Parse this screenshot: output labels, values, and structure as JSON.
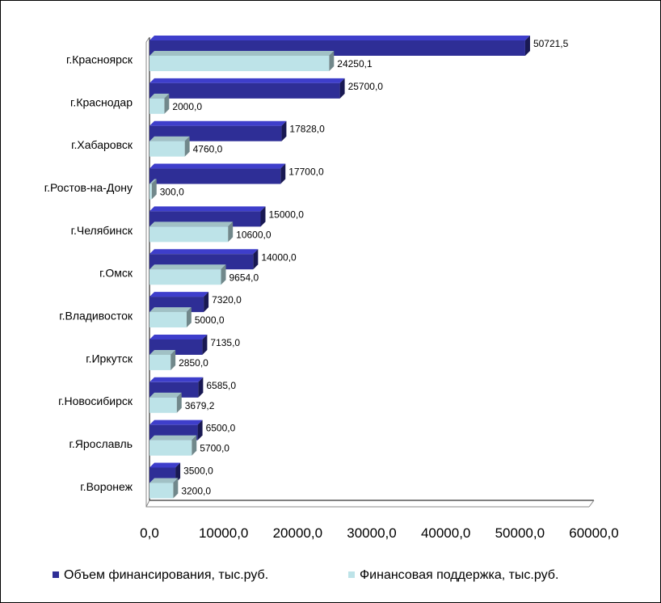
{
  "chart_data": {
    "type": "bar",
    "orientation": "horizontal",
    "three_d": true,
    "categories": [
      "г.Красноярск",
      "г.Краснодар",
      "г.Хабаровск",
      "г.Ростов-на-Дону",
      "г.Челябинск",
      "г.Омск",
      "г.Владивосток",
      "г.Иркутск",
      "г.Новосибирск",
      "г.Ярославль",
      "г.Воронеж"
    ],
    "series": [
      {
        "name": "Объем финансирования, тыс.руб.",
        "color": "#2e2e96",
        "values": [
          50721.5,
          25700.0,
          17828.0,
          17700.0,
          15000.0,
          14000.0,
          7320.0,
          7135.0,
          6585.0,
          6500.0,
          3500.0
        ],
        "labels": [
          "50721,5",
          "25700,0",
          "17828,0",
          "17700,0",
          "15000,0",
          "14000,0",
          "7320,0",
          "7135,0",
          "6585,0",
          "6500,0",
          "3500,0"
        ]
      },
      {
        "name": "Финансовая поддержка, тыс.руб.",
        "color": "#bde3e8",
        "values": [
          24250.1,
          2000.0,
          4760.0,
          300.0,
          10600.0,
          9654.0,
          5000.0,
          2850.0,
          3679.2,
          5700.0,
          3200.0
        ],
        "labels": [
          "24250,1",
          "2000,0",
          "4760,0",
          "300,0",
          "10600,0",
          "9654,0",
          "5000,0",
          "2850,0",
          "3679,2",
          "5700,0",
          "3200,0"
        ]
      }
    ],
    "x_ticks": [
      "0,0",
      "10000,0",
      "20000,0",
      "30000,0",
      "40000,0",
      "50000,0",
      "60000,0"
    ],
    "xlim": [
      0,
      60000
    ],
    "grid": false,
    "legend_position": "bottom"
  }
}
